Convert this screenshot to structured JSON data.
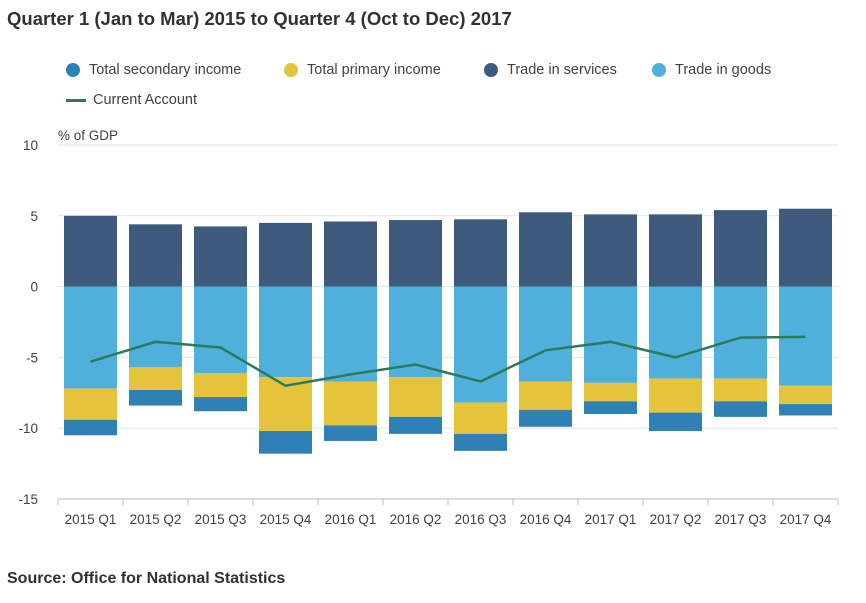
{
  "title": "Quarter 1 (Jan to Mar) 2015 to Quarter 4 (Oct to Dec) 2017",
  "source": "Source: Office for National Statistics",
  "chart_data": {
    "type": "bar",
    "stacked": true,
    "title": "Quarter 1 (Jan to Mar) 2015 to Quarter 4 (Oct to Dec) 2017",
    "ylabel": "% of GDP",
    "xlabel": "",
    "ylim": [
      -15,
      10
    ],
    "yticks": [
      10,
      5,
      0,
      -5,
      -10,
      -15
    ],
    "categories": [
      "2015 Q1",
      "2015 Q2",
      "2015 Q3",
      "2015 Q4",
      "2016 Q1",
      "2016 Q2",
      "2016 Q3",
      "2016 Q4",
      "2017 Q1",
      "2017 Q2",
      "2017 Q3",
      "2017 Q4"
    ],
    "series": [
      {
        "name": "Total secondary income",
        "type": "bar",
        "color": "#2f80b4",
        "values": [
          -1.1,
          -1.1,
          -1.0,
          -1.6,
          -1.1,
          -1.2,
          -1.2,
          -1.2,
          -0.9,
          -1.3,
          -1.1,
          -0.8
        ]
      },
      {
        "name": "Total primary income",
        "type": "bar",
        "color": "#e5c43c",
        "values": [
          -2.2,
          -1.6,
          -1.7,
          -3.8,
          -3.1,
          -2.8,
          -2.2,
          -2.0,
          -1.3,
          -2.4,
          -1.6,
          -1.3
        ]
      },
      {
        "name": "Trade in services",
        "type": "bar",
        "color": "#3e5b7d",
        "values": [
          5.0,
          4.4,
          4.25,
          4.5,
          4.6,
          4.7,
          4.75,
          5.25,
          5.1,
          5.1,
          5.4,
          5.5
        ]
      },
      {
        "name": "Trade in goods",
        "type": "bar",
        "color": "#4fb0dc",
        "values": [
          -7.2,
          -5.7,
          -6.1,
          -6.4,
          -6.7,
          -6.4,
          -8.2,
          -6.7,
          -6.8,
          -6.5,
          -6.5,
          -7.0
        ]
      },
      {
        "name": "Current Account",
        "type": "line",
        "color": "#2d7a5a",
        "values": [
          -5.3,
          -3.9,
          -4.3,
          -7.0,
          -6.2,
          -5.5,
          -6.7,
          -4.5,
          -3.9,
          -5.0,
          -3.6,
          -3.55
        ]
      }
    ],
    "grid": true,
    "legend_position": "top"
  }
}
